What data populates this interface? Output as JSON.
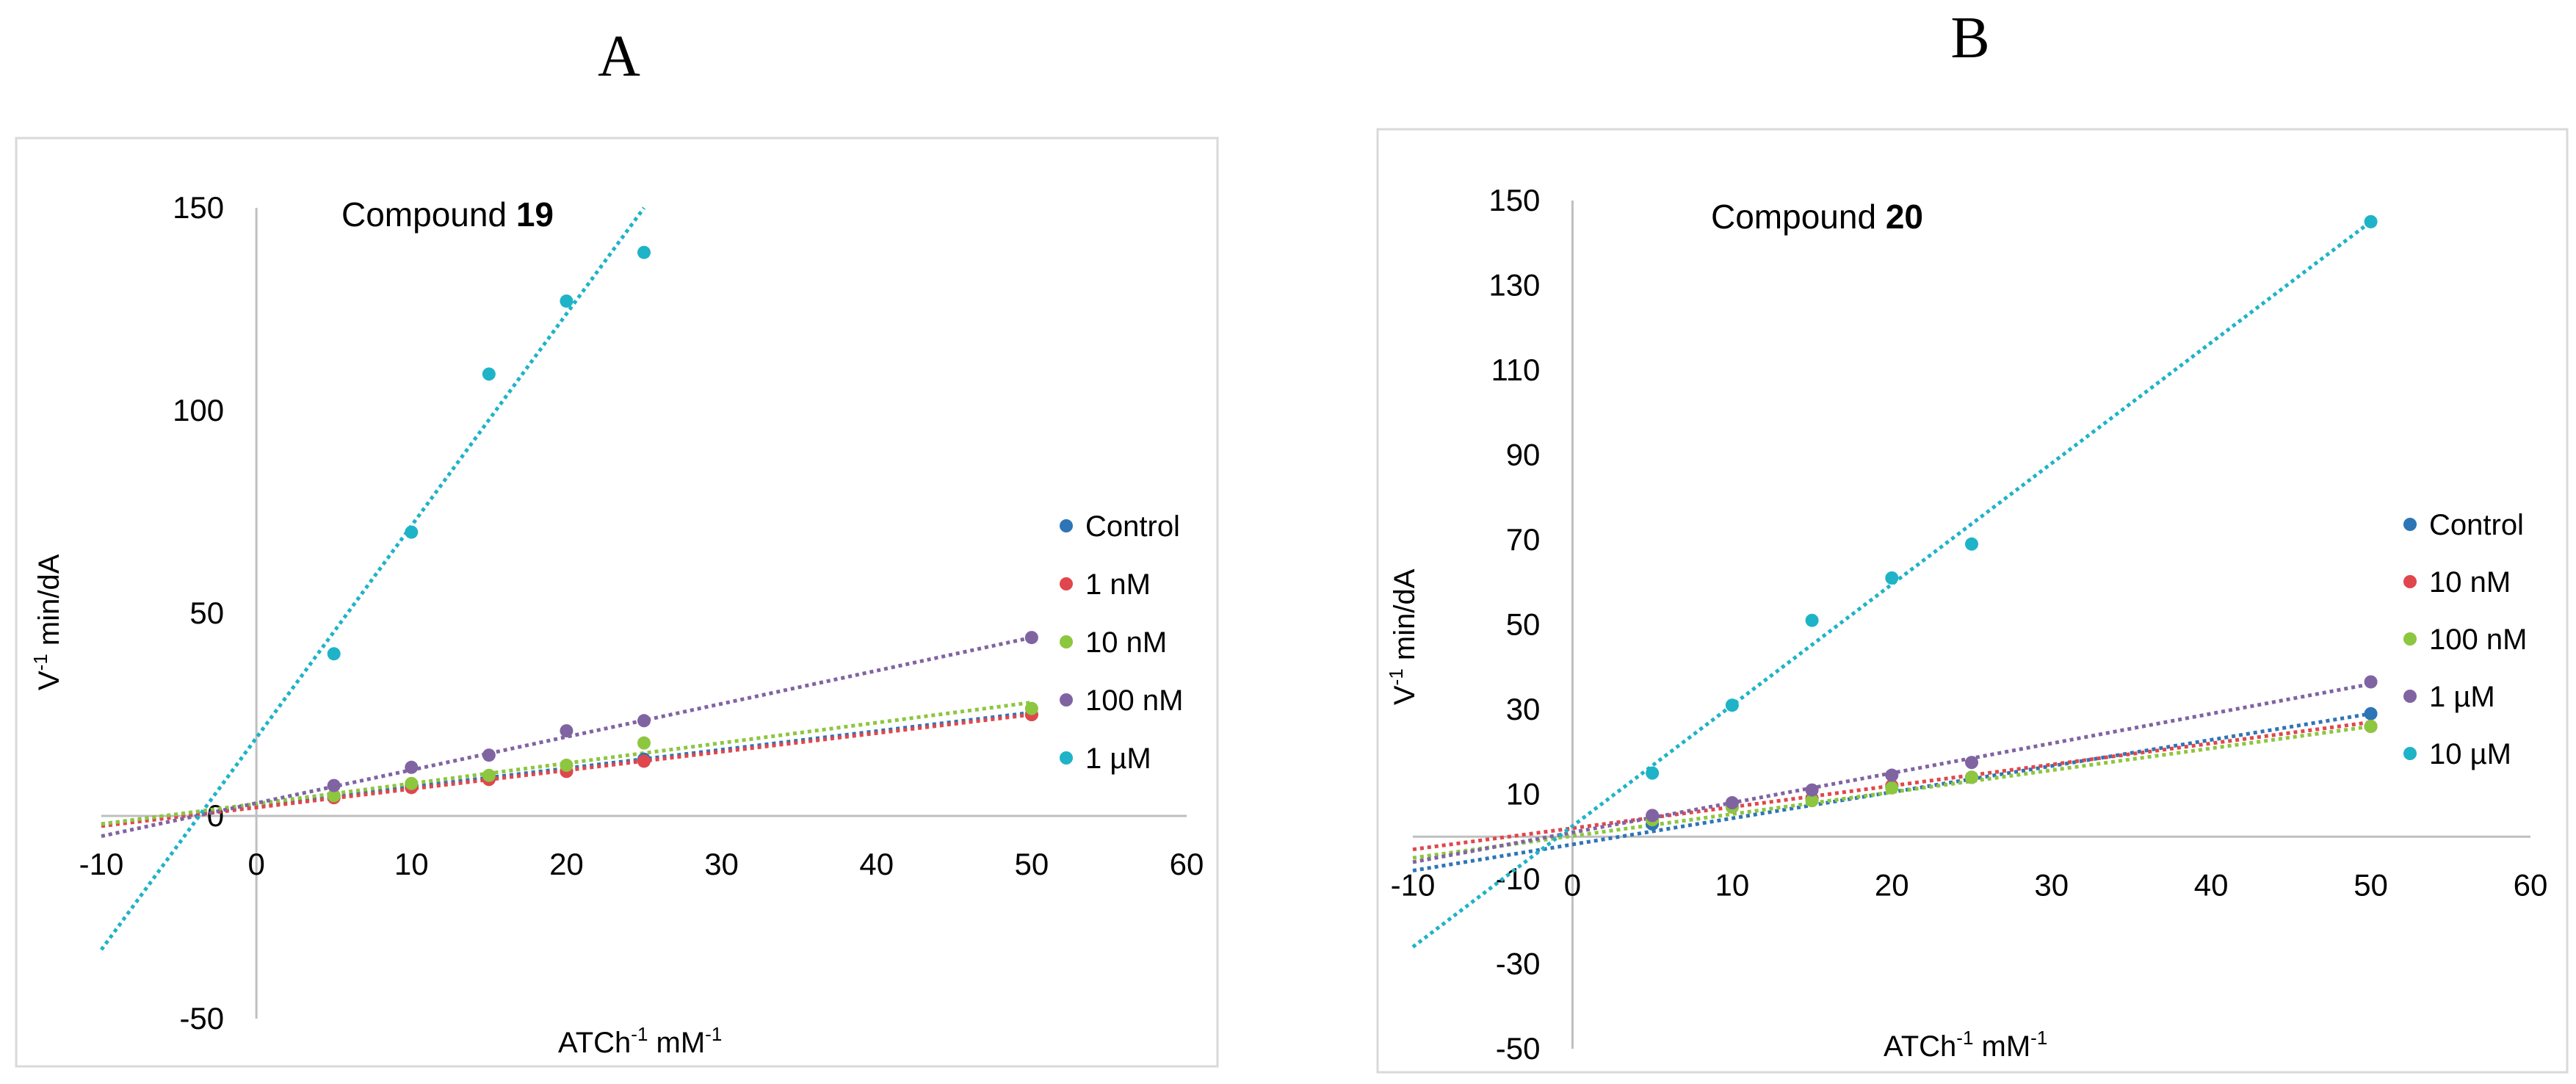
{
  "charts": [
    {
      "panel_label": "A",
      "compound_prefix": "Compound",
      "compound_number": "19",
      "x_axis_title_base": "ATCh",
      "x_axis_title_sup": "-1",
      "x_axis_title_unit": "mM",
      "x_axis_title_unit_sup": "-1",
      "y_axis_title_base": "V",
      "y_axis_title_sup": "-1",
      "y_axis_title_rest": "min/dA"
    },
    {
      "panel_label": "B",
      "compound_prefix": "Compound",
      "compound_number": "20",
      "x_axis_title_base": "ATCh",
      "x_axis_title_sup": "-1",
      "x_axis_title_unit": "mM",
      "x_axis_title_unit_sup": "-1",
      "y_axis_title_base": "V",
      "y_axis_title_sup": "-1",
      "y_axis_title_rest": "min/dA"
    }
  ],
  "chart_data": [
    {
      "type": "scatter",
      "title": "Compound 19",
      "xlabel": "ATCh-1 mM-1",
      "ylabel": "V-1 min/dA",
      "xlim": [
        -10,
        60
      ],
      "ylim": [
        -50,
        150
      ],
      "x_ticks": [
        -10,
        0,
        10,
        20,
        30,
        40,
        50,
        60
      ],
      "y_ticks": [
        -50,
        0,
        50,
        100,
        150
      ],
      "legend_position": "right",
      "series": [
        {
          "name": "Control",
          "color": "#2e75b6",
          "x": [
            5,
            10,
            15,
            20,
            25,
            50
          ],
          "y": [
            5,
            7.5,
            9.5,
            11,
            14,
            25
          ],
          "trend": [
            [
              -10,
              -2
            ],
            [
              50,
              25.5
            ]
          ]
        },
        {
          "name": "1 nM",
          "color": "#e0474c",
          "x": [
            5,
            10,
            15,
            20,
            25,
            50
          ],
          "y": [
            4.5,
            7,
            9,
            11,
            13.5,
            25
          ],
          "trend": [
            [
              -10,
              -2.5
            ],
            [
              50,
              25
            ]
          ]
        },
        {
          "name": "10 nM",
          "color": "#8dc63f",
          "x": [
            5,
            10,
            15,
            20,
            25,
            50
          ],
          "y": [
            5,
            8,
            10,
            12.5,
            18,
            26.5
          ],
          "trend": [
            [
              -10,
              -2
            ],
            [
              50,
              28
            ]
          ]
        },
        {
          "name": "100 nM",
          "color": "#8064a2",
          "x": [
            5,
            10,
            15,
            20,
            25,
            50
          ],
          "y": [
            7.5,
            12,
            15,
            21,
            23.5,
            44
          ],
          "trend": [
            [
              -10,
              -5
            ],
            [
              50,
              44
            ]
          ]
        },
        {
          "name": "1 µM",
          "color": "#1fb3c8",
          "x": [
            5,
            10,
            15,
            20,
            25
          ],
          "y": [
            40,
            70,
            109,
            127,
            139
          ],
          "trend": [
            [
              -10,
              -33
            ],
            [
              25,
              150
            ]
          ]
        }
      ]
    },
    {
      "type": "scatter",
      "title": "Compound 20",
      "xlabel": "ATCh-1 mM-1",
      "ylabel": "V-1 min/dA",
      "xlim": [
        -10,
        60
      ],
      "ylim": [
        -50,
        150
      ],
      "x_ticks": [
        -10,
        0,
        10,
        20,
        30,
        40,
        50,
        60
      ],
      "y_ticks": [
        -50,
        -30,
        -10,
        10,
        30,
        50,
        70,
        90,
        110,
        130,
        150
      ],
      "legend_position": "right",
      "series": [
        {
          "name": "Control",
          "color": "#2e75b6",
          "x": [
            5,
            10,
            15,
            20,
            25,
            50
          ],
          "y": [
            3,
            7,
            9,
            12,
            14,
            29
          ],
          "trend": [
            [
              -10,
              -8
            ],
            [
              50,
              29
            ]
          ]
        },
        {
          "name": "10 nM",
          "color": "#e0474c",
          "x": [
            5,
            10,
            15,
            20,
            25,
            50
          ],
          "y": [
            4,
            7,
            9,
            12,
            14,
            26
          ],
          "trend": [
            [
              -10,
              -3
            ],
            [
              50,
              27
            ]
          ]
        },
        {
          "name": "100 nM",
          "color": "#8dc63f",
          "x": [
            5,
            10,
            15,
            20,
            25,
            50
          ],
          "y": [
            4,
            7,
            8.5,
            11.5,
            14,
            26
          ],
          "trend": [
            [
              -10,
              -5
            ],
            [
              50,
              26
            ]
          ]
        },
        {
          "name": "1 µM",
          "color": "#8064a2",
          "x": [
            5,
            10,
            15,
            20,
            25,
            50
          ],
          "y": [
            5,
            8,
            11,
            14.5,
            17.5,
            36.5
          ],
          "trend": [
            [
              -10,
              -6
            ],
            [
              50,
              36
            ]
          ]
        },
        {
          "name": "10 µM",
          "color": "#1fb3c8",
          "x": [
            5,
            10,
            15,
            20,
            25,
            50
          ],
          "y": [
            15,
            31,
            51,
            61,
            69,
            145
          ],
          "trend": [
            [
              -10,
              -26
            ],
            [
              50,
              145
            ]
          ]
        }
      ]
    }
  ]
}
